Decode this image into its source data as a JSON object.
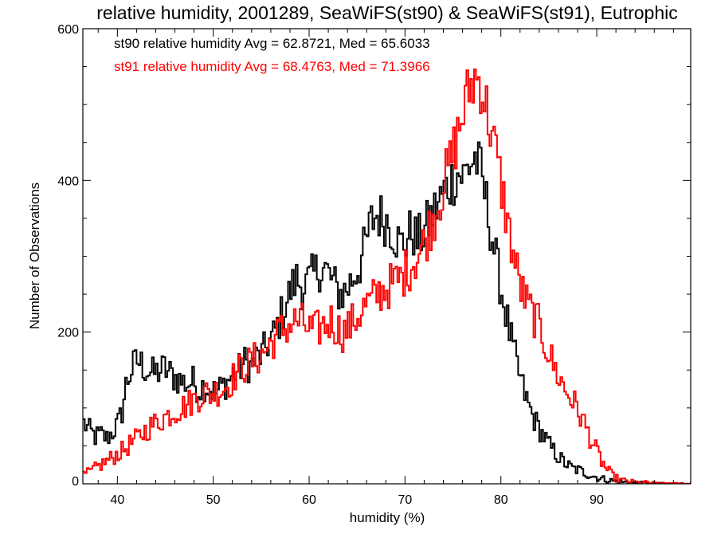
{
  "chart_data": {
    "type": "line",
    "title": "relative humidity, 2001289, SeaWiFS(st90) & SeaWiFS(st91), Eutrophic",
    "xlabel": "humidity (%)",
    "ylabel": "Number of Observations",
    "xlim": [
      36.4,
      99.8
    ],
    "ylim": [
      0,
      600
    ],
    "x_ticks": [
      40,
      50,
      60,
      70,
      80,
      90
    ],
    "x_tick_labels": [
      "40",
      "50",
      "60",
      "70",
      "80",
      "90"
    ],
    "y_ticks": [
      0,
      200,
      400,
      600
    ],
    "y_tick_labels": [
      "0",
      "200",
      "400",
      "600"
    ],
    "x_minor_step": 2,
    "y_minor_step": 50,
    "grid": false,
    "legend_position": "top-left",
    "bin_width": 0.2,
    "series": [
      {
        "name": "st90 relative humidity Avg = 62.8721, Med = 65.6033",
        "color": "#000000",
        "points": [
          [
            36.4,
            80
          ],
          [
            37.0,
            70
          ],
          [
            37.6,
            62
          ],
          [
            38.2,
            65
          ],
          [
            38.8,
            60
          ],
          [
            39.4,
            68
          ],
          [
            40.0,
            80
          ],
          [
            40.4,
            95
          ],
          [
            40.8,
            130
          ],
          [
            41.2,
            145
          ],
          [
            41.6,
            155
          ],
          [
            42.0,
            162
          ],
          [
            42.4,
            158
          ],
          [
            43.0,
            150
          ],
          [
            43.6,
            145
          ],
          [
            44.2,
            148
          ],
          [
            44.8,
            152
          ],
          [
            45.4,
            145
          ],
          [
            46.0,
            140
          ],
          [
            46.6,
            135
          ],
          [
            47.2,
            132
          ],
          [
            47.8,
            135
          ],
          [
            48.4,
            125
          ],
          [
            49.0,
            130
          ],
          [
            49.6,
            125
          ],
          [
            50.2,
            120
          ],
          [
            50.8,
            128
          ],
          [
            51.4,
            135
          ],
          [
            52.0,
            145
          ],
          [
            52.6,
            150
          ],
          [
            53.2,
            160
          ],
          [
            53.8,
            155
          ],
          [
            54.4,
            165
          ],
          [
            55.0,
            170
          ],
          [
            55.6,
            185
          ],
          [
            56.2,
            195
          ],
          [
            56.8,
            215
          ],
          [
            57.4,
            235
          ],
          [
            58.0,
            255
          ],
          [
            58.6,
            270
          ],
          [
            59.2,
            260
          ],
          [
            59.8,
            265
          ],
          [
            60.4,
            275
          ],
          [
            61.0,
            285
          ],
          [
            61.6,
            282
          ],
          [
            62.2,
            270
          ],
          [
            62.8,
            255
          ],
          [
            63.4,
            250
          ],
          [
            64.0,
            260
          ],
          [
            64.6,
            275
          ],
          [
            65.2,
            290
          ],
          [
            65.8,
            315
          ],
          [
            66.4,
            345
          ],
          [
            67.0,
            355
          ],
          [
            67.6,
            350
          ],
          [
            68.2,
            345
          ],
          [
            68.8,
            330
          ],
          [
            69.4,
            315
          ],
          [
            70.0,
            320
          ],
          [
            70.6,
            335
          ],
          [
            71.2,
            320
          ],
          [
            71.8,
            330
          ],
          [
            72.4,
            345
          ],
          [
            73.0,
            360
          ],
          [
            73.6,
            375
          ],
          [
            74.2,
            390
          ],
          [
            74.8,
            400
          ],
          [
            75.4,
            410
          ],
          [
            76.0,
            405
          ],
          [
            76.6,
            420
          ],
          [
            77.2,
            430
          ],
          [
            77.8,
            410
          ],
          [
            78.4,
            370
          ],
          [
            79.0,
            325
          ],
          [
            79.6,
            280
          ],
          [
            80.2,
            240
          ],
          [
            80.8,
            200
          ],
          [
            81.4,
            165
          ],
          [
            82.0,
            135
          ],
          [
            82.6,
            110
          ],
          [
            83.2,
            90
          ],
          [
            83.8,
            75
          ],
          [
            84.4,
            62
          ],
          [
            85.0,
            50
          ],
          [
            85.6,
            40
          ],
          [
            86.2,
            32
          ],
          [
            86.8,
            25
          ],
          [
            87.4,
            20
          ],
          [
            88.0,
            18
          ],
          [
            88.6,
            15
          ],
          [
            89.2,
            12
          ],
          [
            89.8,
            9
          ],
          [
            90.4,
            7
          ],
          [
            91.0,
            5
          ],
          [
            91.6,
            4
          ],
          [
            92.2,
            3
          ],
          [
            92.8,
            2
          ],
          [
            93.4,
            2
          ],
          [
            94.0,
            1
          ],
          [
            94.6,
            1
          ],
          [
            95.2,
            1
          ],
          [
            96.0,
            0
          ],
          [
            97.0,
            0
          ],
          [
            99.8,
            0
          ]
        ]
      },
      {
        "name": "st91 relative humidity Avg = 68.4763, Med = 71.3966",
        "color": "#ff0000",
        "points": [
          [
            36.4,
            12
          ],
          [
            37.0,
            15
          ],
          [
            37.6,
            20
          ],
          [
            38.2,
            25
          ],
          [
            38.8,
            30
          ],
          [
            39.4,
            35
          ],
          [
            40.0,
            40
          ],
          [
            40.6,
            45
          ],
          [
            41.2,
            52
          ],
          [
            41.8,
            58
          ],
          [
            42.4,
            65
          ],
          [
            43.0,
            72
          ],
          [
            43.6,
            78
          ],
          [
            44.2,
            82
          ],
          [
            44.8,
            88
          ],
          [
            45.4,
            92
          ],
          [
            46.0,
            96
          ],
          [
            46.6,
            100
          ],
          [
            47.2,
            105
          ],
          [
            47.8,
            110
          ],
          [
            48.4,
            115
          ],
          [
            49.0,
            120
          ],
          [
            49.6,
            118
          ],
          [
            50.2,
            122
          ],
          [
            50.8,
            125
          ],
          [
            51.4,
            130
          ],
          [
            52.0,
            140
          ],
          [
            52.6,
            150
          ],
          [
            53.2,
            155
          ],
          [
            53.8,
            160
          ],
          [
            54.4,
            165
          ],
          [
            55.0,
            170
          ],
          [
            55.6,
            180
          ],
          [
            56.2,
            190
          ],
          [
            56.8,
            200
          ],
          [
            57.4,
            205
          ],
          [
            58.0,
            210
          ],
          [
            58.6,
            215
          ],
          [
            59.2,
            212
          ],
          [
            59.8,
            205
          ],
          [
            60.4,
            200
          ],
          [
            61.0,
            205
          ],
          [
            61.6,
            210
          ],
          [
            62.2,
            215
          ],
          [
            62.8,
            205
          ],
          [
            63.4,
            200
          ],
          [
            64.0,
            205
          ],
          [
            64.6,
            215
          ],
          [
            65.2,
            225
          ],
          [
            65.8,
            235
          ],
          [
            66.4,
            240
          ],
          [
            67.0,
            250
          ],
          [
            67.6,
            255
          ],
          [
            68.2,
            260
          ],
          [
            68.8,
            265
          ],
          [
            69.4,
            270
          ],
          [
            70.0,
            280
          ],
          [
            70.6,
            290
          ],
          [
            71.2,
            300
          ],
          [
            71.8,
            315
          ],
          [
            72.4,
            335
          ],
          [
            73.0,
            355
          ],
          [
            73.6,
            380
          ],
          [
            74.2,
            405
          ],
          [
            74.8,
            430
          ],
          [
            75.4,
            460
          ],
          [
            76.0,
            490
          ],
          [
            76.6,
            520
          ],
          [
            77.2,
            535
          ],
          [
            77.8,
            530
          ],
          [
            78.4,
            495
          ],
          [
            79.0,
            460
          ],
          [
            79.6,
            420
          ],
          [
            80.2,
            375
          ],
          [
            80.8,
            330
          ],
          [
            81.4,
            290
          ],
          [
            82.0,
            258
          ],
          [
            82.6,
            238
          ],
          [
            83.2,
            225
          ],
          [
            83.8,
            210
          ],
          [
            84.4,
            190
          ],
          [
            85.0,
            170
          ],
          [
            85.6,
            150
          ],
          [
            86.2,
            135
          ],
          [
            86.8,
            120
          ],
          [
            87.4,
            110
          ],
          [
            88.0,
            95
          ],
          [
            88.6,
            80
          ],
          [
            89.2,
            62
          ],
          [
            89.8,
            45
          ],
          [
            90.4,
            30
          ],
          [
            91.0,
            18
          ],
          [
            91.6,
            10
          ],
          [
            92.2,
            6
          ],
          [
            92.8,
            4
          ],
          [
            93.4,
            3
          ],
          [
            94.0,
            2
          ],
          [
            94.6,
            1
          ],
          [
            95.2,
            2
          ],
          [
            95.8,
            1
          ],
          [
            96.6,
            0
          ],
          [
            97.4,
            1
          ],
          [
            98.0,
            0
          ],
          [
            99.8,
            0
          ]
        ]
      }
    ]
  }
}
